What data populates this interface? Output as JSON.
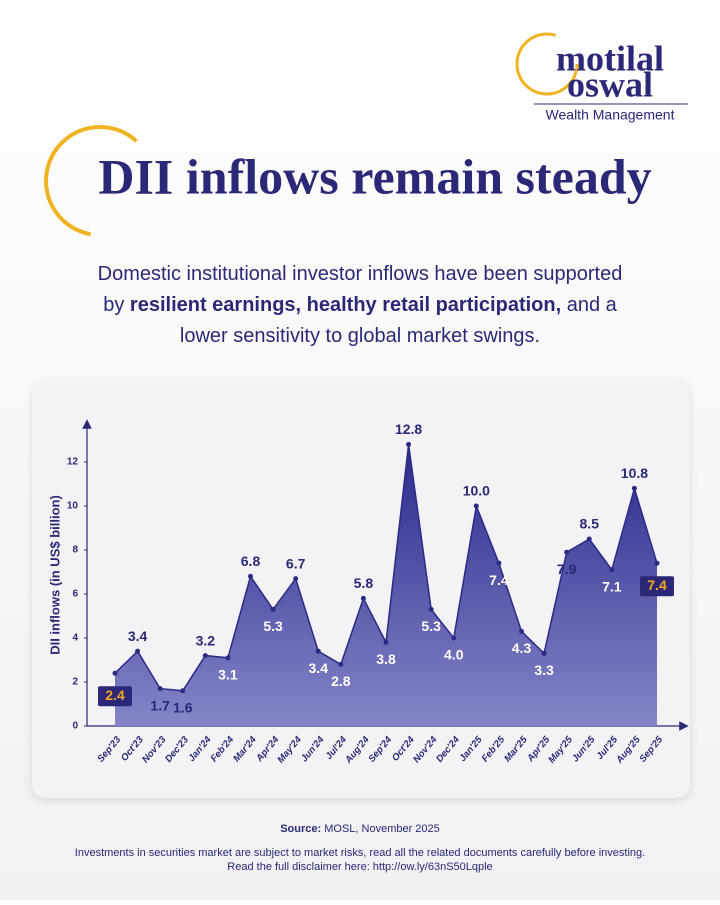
{
  "header": {
    "logo_lines": [
      "motilal",
      "oswal"
    ],
    "logo_tagline": "Wealth Management"
  },
  "title": "DII inflows remain steady",
  "subtitle": {
    "lines": [
      [
        {
          "text": "Domestic institutional investor inflows have been supported",
          "bold": false
        }
      ],
      [
        {
          "text": "by ",
          "bold": false
        },
        {
          "text": "resilient earnings, healthy retail participation,",
          "bold": true
        },
        {
          "text": " and a",
          "bold": false
        }
      ],
      [
        {
          "text": "lower sensitivity to global market swings.",
          "bold": false
        }
      ]
    ]
  },
  "chart_data": {
    "type": "area",
    "y_label": "DII inflows (in US$ billion)",
    "categories": [
      "Sep'23",
      "Oct'23",
      "Nov'23",
      "Dec'23",
      "Jan'24",
      "Feb'24",
      "Mar'24",
      "Apr'24",
      "May'24",
      "Jun'24",
      "Jul'24",
      "Aug'24",
      "Sep'24",
      "Oct'24",
      "Nov'24",
      "Dec'24",
      "Jan'25",
      "Feb'25",
      "Mar'25",
      "Apr'25",
      "May'25",
      "Jun'25",
      "Jul'25",
      "Aug'25",
      "Sep'25"
    ],
    "values": [
      2.4,
      3.4,
      1.7,
      1.6,
      3.2,
      3.1,
      6.8,
      5.3,
      6.7,
      3.4,
      2.8,
      5.8,
      3.8,
      12.8,
      5.3,
      4.0,
      10.0,
      7.4,
      4.3,
      3.3,
      7.9,
      8.5,
      7.1,
      10.8,
      7.4
    ],
    "value_labels": [
      "2.4",
      "3.4",
      "1.7",
      "1.6",
      "3.2",
      "3.1",
      "6.8",
      "5.3",
      "6.7",
      "3.4",
      "2.8",
      "5.8",
      "3.8",
      "12.8",
      "5.3",
      "4.0",
      "10.0",
      "7.4",
      "4.3",
      "3.3",
      "7.9",
      "8.5",
      "7.1",
      "10.8",
      "7.4"
    ],
    "color": "#2b2a85",
    "ylim": [
      0,
      13.5
    ],
    "yticks": [
      0,
      2,
      4,
      6,
      8,
      10,
      12
    ],
    "grid": false
  },
  "footer": {
    "source_label": "Source:",
    "source_text": " MOSL, November 2025",
    "disclaimer": [
      "Investments in securities market are subject to market risks, read all the related documents carefully before investing.",
      "Read the full disclaimer here: http://ow.ly/63nS50Lqple"
    ]
  }
}
